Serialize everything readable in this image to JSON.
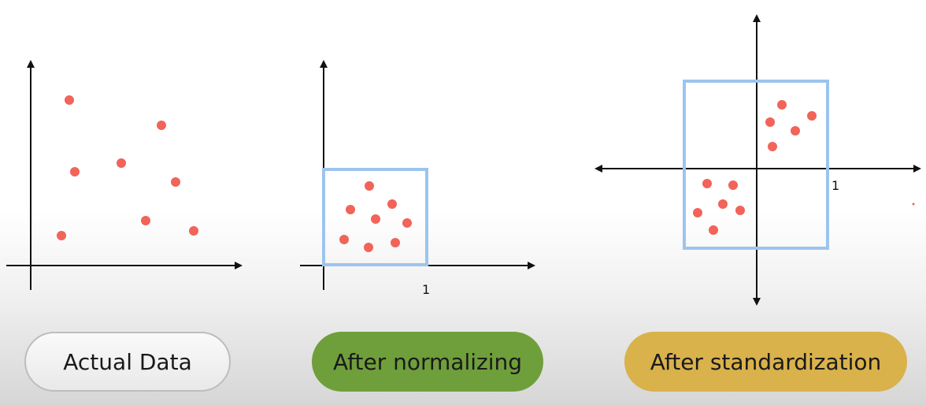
{
  "colors": {
    "point": "#f26359",
    "axis": "#111111",
    "box": "#9cc4ef",
    "actual_pill": "#ebebeb",
    "normalized_pill": "#6f9f3b",
    "standardized_pill": "#d9b24c"
  },
  "panels": [
    {
      "id": "actual",
      "label": "Actual Data",
      "axis_tick_label": ""
    },
    {
      "id": "normalized",
      "label": "After normalizing",
      "axis_tick_label": "1"
    },
    {
      "id": "standardized",
      "label": "After standardization",
      "axis_tick_label": "1"
    }
  ]
}
